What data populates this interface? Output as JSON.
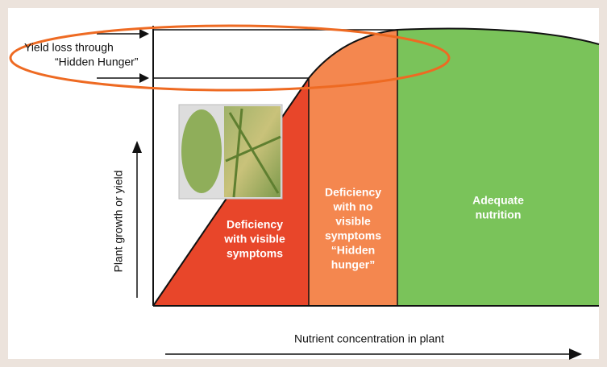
{
  "callout": {
    "lines": [
      "Yield loss through",
      "“Hidden Hunger”"
    ]
  },
  "zones": [
    {
      "lines": [
        "Deficiency",
        "with visible",
        "symptoms"
      ]
    },
    {
      "lines": [
        "Deficiency",
        "with no",
        "visible",
        "symptoms",
        "“Hidden",
        "hunger”"
      ]
    },
    {
      "lines": [
        "Adequate",
        "nutrition"
      ]
    }
  ],
  "y_axis_label": "Plant growth or yield",
  "x_axis_label": "Nutrient concentration in plant"
}
